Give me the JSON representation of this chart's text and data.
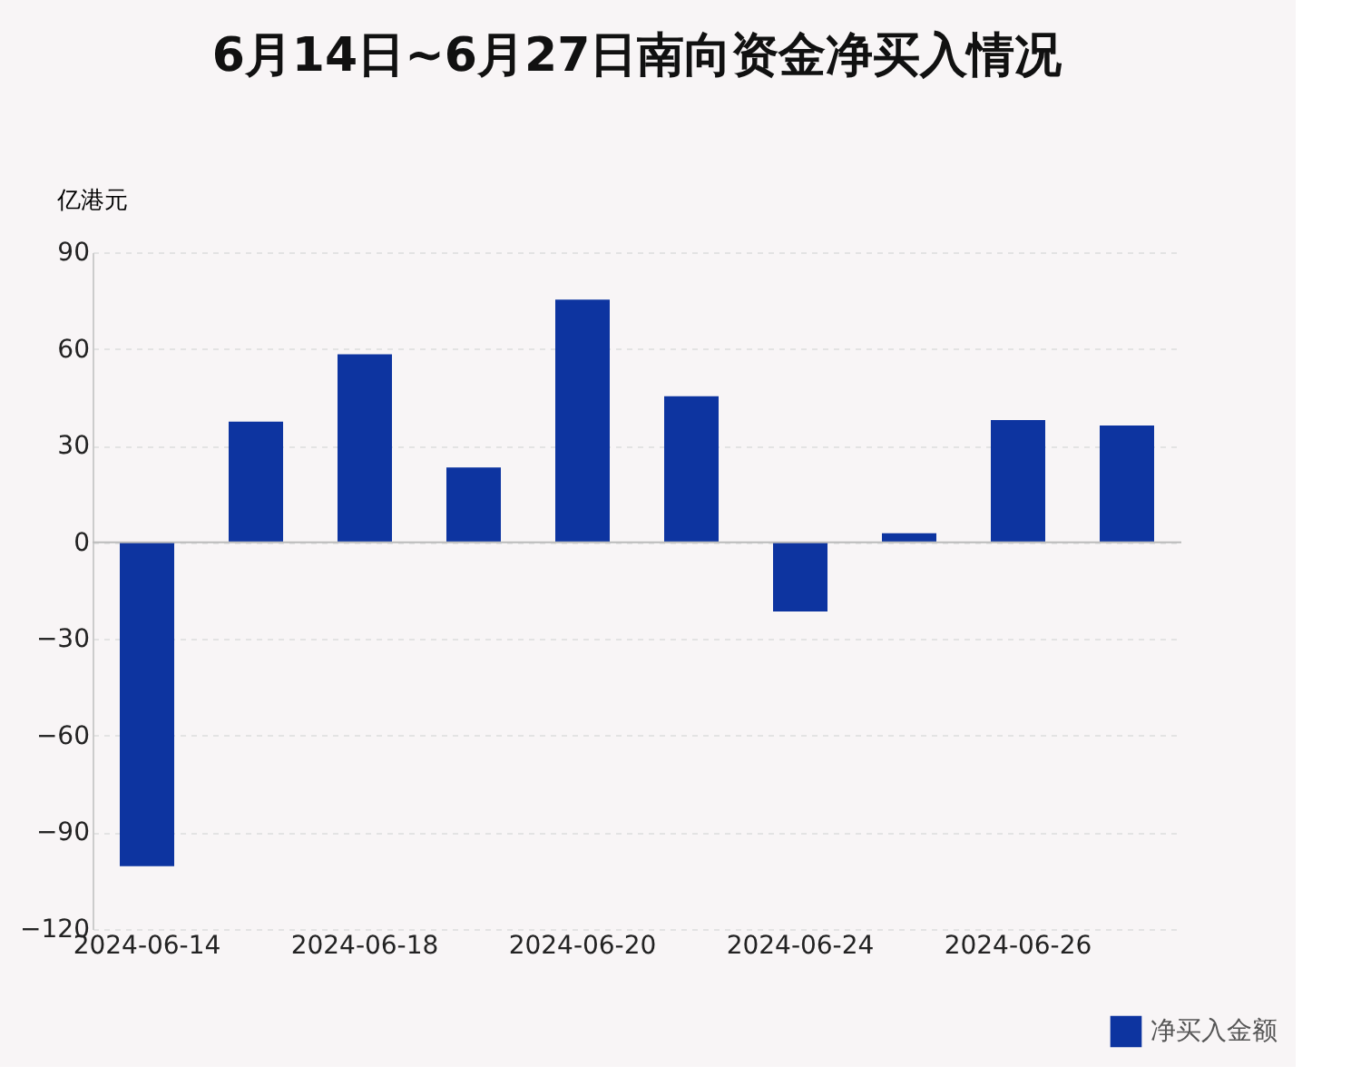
{
  "chart_data": {
    "type": "bar",
    "title": "6月14日~6月27日南向资金净买入情况",
    "ylabel": "亿港元",
    "categories": [
      "2024-06-14",
      null,
      "2024-06-18",
      null,
      "2024-06-20",
      null,
      "2024-06-24",
      null,
      "2024-06-26",
      null
    ],
    "series": [
      {
        "name": "净买入金额",
        "color": "#0d34a0",
        "values": [
          -100.5,
          37.4,
          58.3,
          23.2,
          75.3,
          45.3,
          -21.5,
          2.8,
          37.9,
          36.2
        ]
      }
    ],
    "ylim": [
      -120,
      90
    ],
    "yticks": [
      -120,
      -90,
      -60,
      -30,
      0,
      30,
      60,
      90
    ],
    "grid": "y",
    "legend": "bottom right"
  }
}
